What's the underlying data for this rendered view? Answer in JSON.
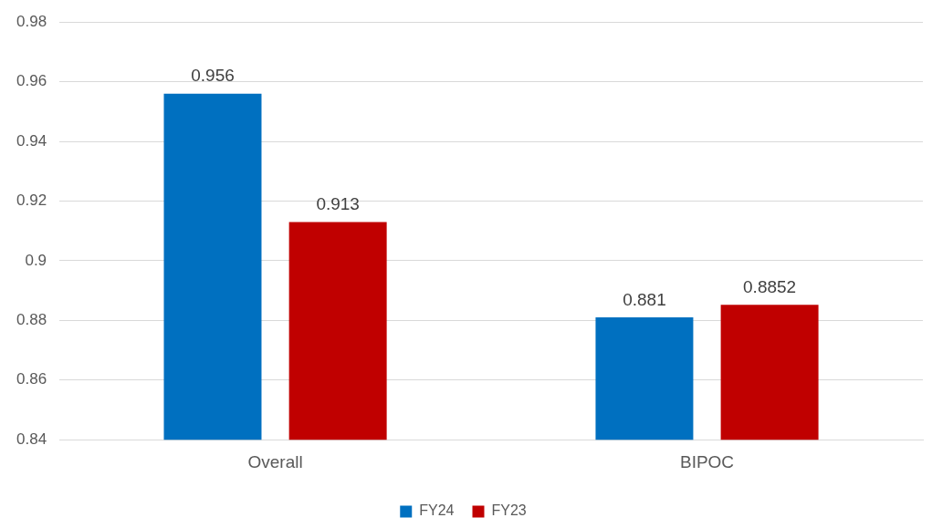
{
  "chart_data": {
    "type": "bar",
    "categories": [
      "Overall",
      "BIPOC"
    ],
    "series": [
      {
        "name": "FY24",
        "color": "#0070c0",
        "values": [
          0.956,
          0.881
        ]
      },
      {
        "name": "FY23",
        "color": "#c00000",
        "values": [
          0.913,
          0.8852
        ]
      }
    ],
    "ylim": [
      0.84,
      0.98
    ],
    "yticks": [
      0.84,
      0.86,
      0.88,
      0.9,
      0.92,
      0.94,
      0.96,
      0.98
    ],
    "grid": "y",
    "legend": "bottom",
    "data_labels": true
  }
}
